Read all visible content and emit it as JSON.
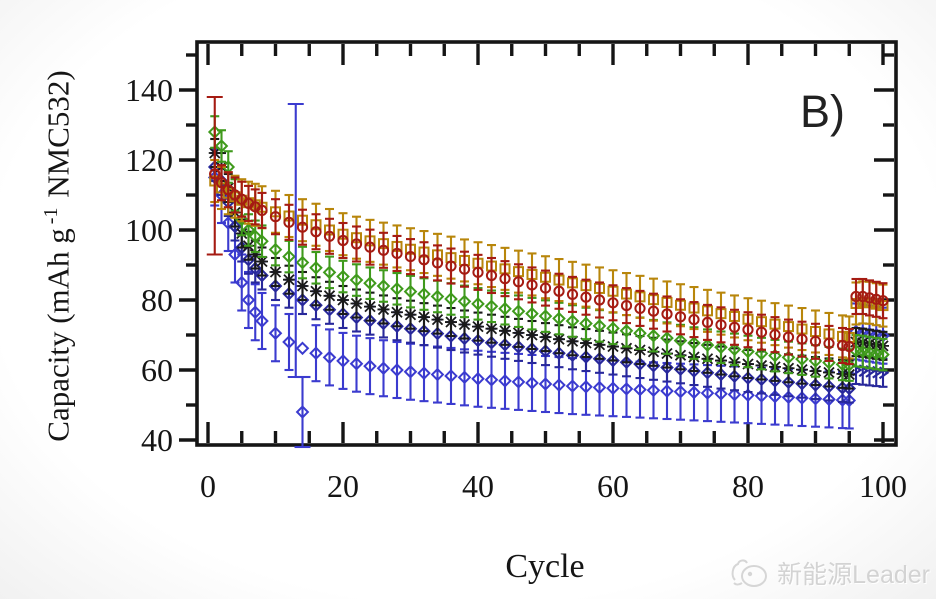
{
  "figure": {
    "panel_label": "B)",
    "x_axis": {
      "label": "Cycle",
      "ticks": [
        0,
        20,
        40,
        60,
        80,
        100
      ],
      "minor_step": 5,
      "range": [
        -1.6,
        101.9
      ]
    },
    "y_axis": {
      "label_pre": "Capacity (mAh g",
      "label_sup": "-1",
      "label_post": " NMC532)",
      "ticks": [
        40,
        60,
        80,
        100,
        120,
        140
      ],
      "minor_step": 10,
      "range": [
        38.5,
        153.5
      ]
    }
  },
  "watermark": {
    "text": "新能源Leader",
    "logo": "doodle-animal-logo"
  },
  "chart_data": {
    "type": "scatter",
    "title": "",
    "xlabel": "Cycle",
    "ylabel": "Capacity (mAh g-1 NMC532)",
    "xlim": [
      -2,
      102
    ],
    "ylim": [
      38.5,
      153.5
    ],
    "grid": false,
    "legend": "none",
    "x": [
      1,
      2,
      3,
      4,
      5,
      6,
      7,
      8,
      10,
      12,
      14,
      16,
      18,
      20,
      22,
      24,
      26,
      28,
      30,
      32,
      34,
      36,
      38,
      40,
      42,
      44,
      46,
      48,
      50,
      52,
      54,
      56,
      58,
      60,
      62,
      64,
      66,
      68,
      70,
      72,
      74,
      76,
      78,
      80,
      82,
      84,
      86,
      88,
      90,
      92,
      94,
      95,
      96,
      97,
      98,
      99,
      100
    ],
    "series": [
      {
        "name": "blue-diamond",
        "marker": "diamond",
        "color": "#3b3bcf",
        "err": 8,
        "values": [
          115,
          110,
          102,
          93,
          85,
          80,
          76.5,
          74,
          70.5,
          68,
          66.2,
          64.8,
          63.6,
          62.6,
          61.8,
          61.1,
          60.5,
          60,
          59.5,
          59.1,
          58.7,
          58.3,
          57.9,
          57.5,
          57.2,
          56.9,
          56.6,
          56.3,
          56,
          55.7,
          55.4,
          55.2,
          55,
          54.8,
          54.6,
          54.4,
          54.2,
          54,
          53.8,
          53.6,
          53.4,
          53.2,
          53,
          52.8,
          52.6,
          52.4,
          52.2,
          52,
          51.8,
          51.6,
          51.4,
          51.3,
          71,
          70.7,
          70.4,
          70.1,
          69.8
        ]
      },
      {
        "name": "navy-diamond",
        "marker": "diamond",
        "color": "#28289b",
        "err": 4,
        "end_arrow": true,
        "values": [
          118,
          114,
          108,
          101,
          95,
          91.5,
          89,
          87,
          84,
          81.8,
          80,
          78.5,
          77.2,
          76,
          75,
          74.1,
          73.3,
          72.5,
          71.8,
          71.1,
          70.4,
          69.7,
          69,
          68.4,
          67.8,
          67.2,
          66.6,
          66,
          65.4,
          64.8,
          64.2,
          63.7,
          63.2,
          62.7,
          62.2,
          61.7,
          61.2,
          60.7,
          60.2,
          59.7,
          59.2,
          58.7,
          58.2,
          57.7,
          57.3,
          56.9,
          56.5,
          56.1,
          55.7,
          55.3,
          54.9,
          54.7,
          60,
          59.8,
          59.6,
          59.4,
          59.2
        ]
      },
      {
        "name": "black-cross",
        "marker": "cross",
        "color": "#1a1a1a",
        "err": 4,
        "values": [
          122,
          118,
          112,
          105,
          99,
          95.5,
          93,
          91,
          88,
          85.8,
          84,
          82.5,
          81.2,
          80,
          79,
          78.1,
          77.3,
          76.5,
          75.8,
          75.1,
          74.4,
          73.7,
          73,
          72.4,
          71.8,
          71.2,
          70.6,
          70,
          69.4,
          68.8,
          68.2,
          67.7,
          67.2,
          66.7,
          66.2,
          65.7,
          65.2,
          64.7,
          64.2,
          63.7,
          63.2,
          62.7,
          62.2,
          61.7,
          61.3,
          60.9,
          60.5,
          60.1,
          59.7,
          59.3,
          58.9,
          58.7,
          68,
          67.8,
          67.5,
          67.2,
          66.9
        ]
      },
      {
        "name": "green-diamond",
        "marker": "diamond",
        "color": "#3f9a1c",
        "err": 4.5,
        "values": [
          128,
          124,
          118,
          110,
          103,
          100,
          98.2,
          96.8,
          94.4,
          92.4,
          90.7,
          89.2,
          87.9,
          86.7,
          85.7,
          84.8,
          84,
          83.2,
          82.4,
          81.7,
          81,
          80.3,
          79.6,
          78.9,
          78.2,
          77.5,
          76.8,
          76.1,
          75.4,
          74.7,
          74,
          73.3,
          72.6,
          71.9,
          71.2,
          70.5,
          69.8,
          69.1,
          68.4,
          67.7,
          67.1,
          66.5,
          65.9,
          65.3,
          64.7,
          64.1,
          63.6,
          63.1,
          62.6,
          62.1,
          61.6,
          61.4,
          65.5,
          65.3,
          65,
          64.7,
          64.4
        ]
      },
      {
        "name": "dark-yellow-square",
        "marker": "square",
        "color": "#b8860b",
        "err": 6,
        "values": [
          114,
          112,
          110.5,
          109.5,
          108.5,
          107.8,
          107.2,
          106.5,
          105.2,
          104,
          102.8,
          101.5,
          100,
          98.8,
          97.8,
          96.9,
          96.1,
          95.3,
          94.5,
          93.7,
          92.9,
          92.1,
          91.3,
          90.5,
          89.7,
          88.9,
          88.1,
          87.3,
          86.5,
          85.7,
          84.9,
          84.1,
          83.3,
          82.5,
          81.7,
          80.9,
          80.1,
          79.3,
          78.5,
          77.7,
          76.9,
          76.1,
          75.3,
          74.5,
          73.8,
          73.1,
          72.4,
          71.7,
          71,
          70.3,
          69.6,
          69.3,
          79,
          79.3,
          79.2,
          78.8,
          78.4
        ]
      },
      {
        "name": "dark-red-circle",
        "marker": "circle",
        "color": "#a51b12",
        "err": 5,
        "values": [
          116,
          113.5,
          111.5,
          110,
          108.8,
          107.6,
          106.6,
          105.6,
          103.8,
          102.2,
          100.8,
          99.5,
          98.2,
          97,
          96,
          95.1,
          94.2,
          93.3,
          92.4,
          91.5,
          90.6,
          89.7,
          88.8,
          87.9,
          87,
          86.1,
          85.2,
          84.3,
          83.4,
          82.5,
          81.6,
          80.8,
          80,
          79.2,
          78.4,
          77.6,
          76.8,
          76,
          75.2,
          74.4,
          73.6,
          72.9,
          72.2,
          71.5,
          70.8,
          70.1,
          69.4,
          68.8,
          68.2,
          67.6,
          67,
          66.7,
          81,
          81,
          80.6,
          80.2,
          79.8
        ]
      }
    ],
    "outliers": [
      {
        "series": "dark-red-circle",
        "cycle": 1,
        "value": 116,
        "lo": 93,
        "hi": 138,
        "marker": "circle"
      },
      {
        "series": "blue-diamond",
        "cycle": 13,
        "value": null,
        "lo": 58,
        "hi": 136,
        "marker": null
      },
      {
        "series": "blue-diamond",
        "cycle": 14,
        "value": 48,
        "lo": 38,
        "hi": 58,
        "marker": "diamond"
      }
    ]
  }
}
